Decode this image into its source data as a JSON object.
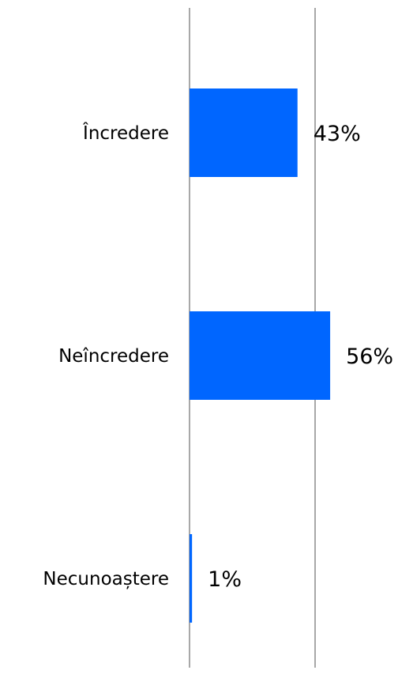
{
  "chart_data": {
    "type": "bar",
    "orientation": "horizontal",
    "categories": [
      "Încredere",
      "Neîncredere",
      "Necunoaștere"
    ],
    "values": [
      43,
      56,
      1
    ],
    "value_labels": [
      "43%",
      "56%",
      "1%"
    ],
    "xlim": [
      0,
      50
    ],
    "grid": true,
    "bar_color": "#0066ff",
    "title": "",
    "xlabel": "",
    "ylabel": ""
  }
}
